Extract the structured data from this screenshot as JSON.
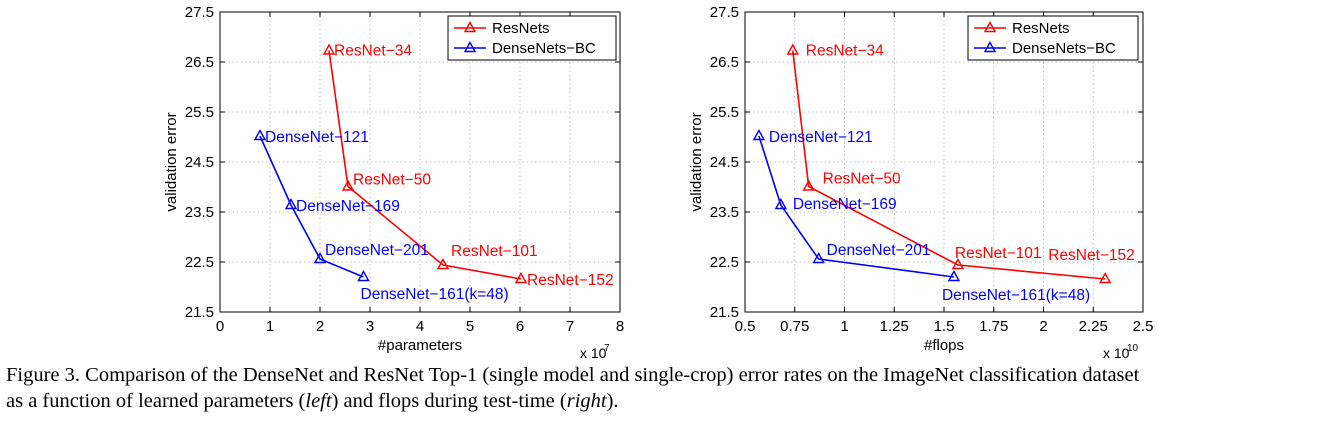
{
  "chart_data": [
    {
      "type": "line",
      "xlabel": "#parameters",
      "ylabel": "validation error",
      "x_multiplier": "x 10",
      "x_exponent": "7",
      "xlim": [
        0,
        8
      ],
      "ylim": [
        21.5,
        27.5
      ],
      "xticks": [
        "0",
        "1",
        "2",
        "3",
        "4",
        "5",
        "6",
        "7",
        "8"
      ],
      "yticks": [
        "21.5",
        "22.5",
        "23.5",
        "24.5",
        "25.5",
        "26.5",
        "27.5"
      ],
      "grid": true,
      "legend_position": "top-right",
      "series": [
        {
          "name": "ResNets",
          "color": "#ff0000",
          "marker": "triangle",
          "x": [
            2.18,
            2.56,
            4.46,
            6.02
          ],
          "y": [
            26.73,
            24.01,
            22.44,
            22.16
          ],
          "labels": [
            "ResNet−34",
            "ResNet−50",
            "ResNet−101",
            "ResNet−152"
          ]
        },
        {
          "name": "DenseNets−BC",
          "color": "#0000ff",
          "marker": "triangle",
          "x": [
            0.8,
            1.42,
            2.0,
            2.87
          ],
          "y": [
            25.02,
            23.64,
            22.56,
            22.2
          ],
          "labels": [
            "DenseNet−121",
            "DenseNet−169",
            "DenseNet−201",
            "DenseNet−161(k=48)"
          ]
        }
      ]
    },
    {
      "type": "line",
      "xlabel": "#flops",
      "ylabel": "validation error",
      "x_multiplier": "x 10",
      "x_exponent": "10",
      "xlim": [
        0.5,
        2.5
      ],
      "ylim": [
        21.5,
        27.5
      ],
      "xticks": [
        "0.5",
        "0.75",
        "1",
        "1.25",
        "1.5",
        "1.75",
        "2",
        "2.25",
        "2.5"
      ],
      "yticks": [
        "21.5",
        "22.5",
        "23.5",
        "24.5",
        "25.5",
        "26.5",
        "27.5"
      ],
      "grid": true,
      "legend_position": "top-right",
      "series": [
        {
          "name": "ResNets",
          "color": "#ff0000",
          "marker": "triangle",
          "x": [
            0.74,
            0.82,
            1.57,
            2.31
          ],
          "y": [
            26.73,
            24.01,
            22.44,
            22.16
          ],
          "labels": [
            "ResNet−34",
            "ResNet−50",
            "ResNet−101",
            "ResNet−152"
          ]
        },
        {
          "name": "DenseNets−BC",
          "color": "#0000ff",
          "marker": "triangle",
          "x": [
            0.57,
            0.68,
            0.87,
            1.55
          ],
          "y": [
            25.02,
            23.64,
            22.56,
            22.2
          ],
          "labels": [
            "DenseNet−121",
            "DenseNet−169",
            "DenseNet−201",
            "DenseNet−161(k=48)"
          ]
        }
      ]
    }
  ],
  "caption": {
    "line1": "Figure 3. Comparison of the DenseNet and ResNet Top-1 (single model and single-crop) error rates on the ImageNet classification dataset",
    "line2_pre": "as a function of learned parameters (",
    "line2_left": "left",
    "line2_mid": ") and flops during test-time (",
    "line2_right": "right",
    "line2_post": ")."
  }
}
